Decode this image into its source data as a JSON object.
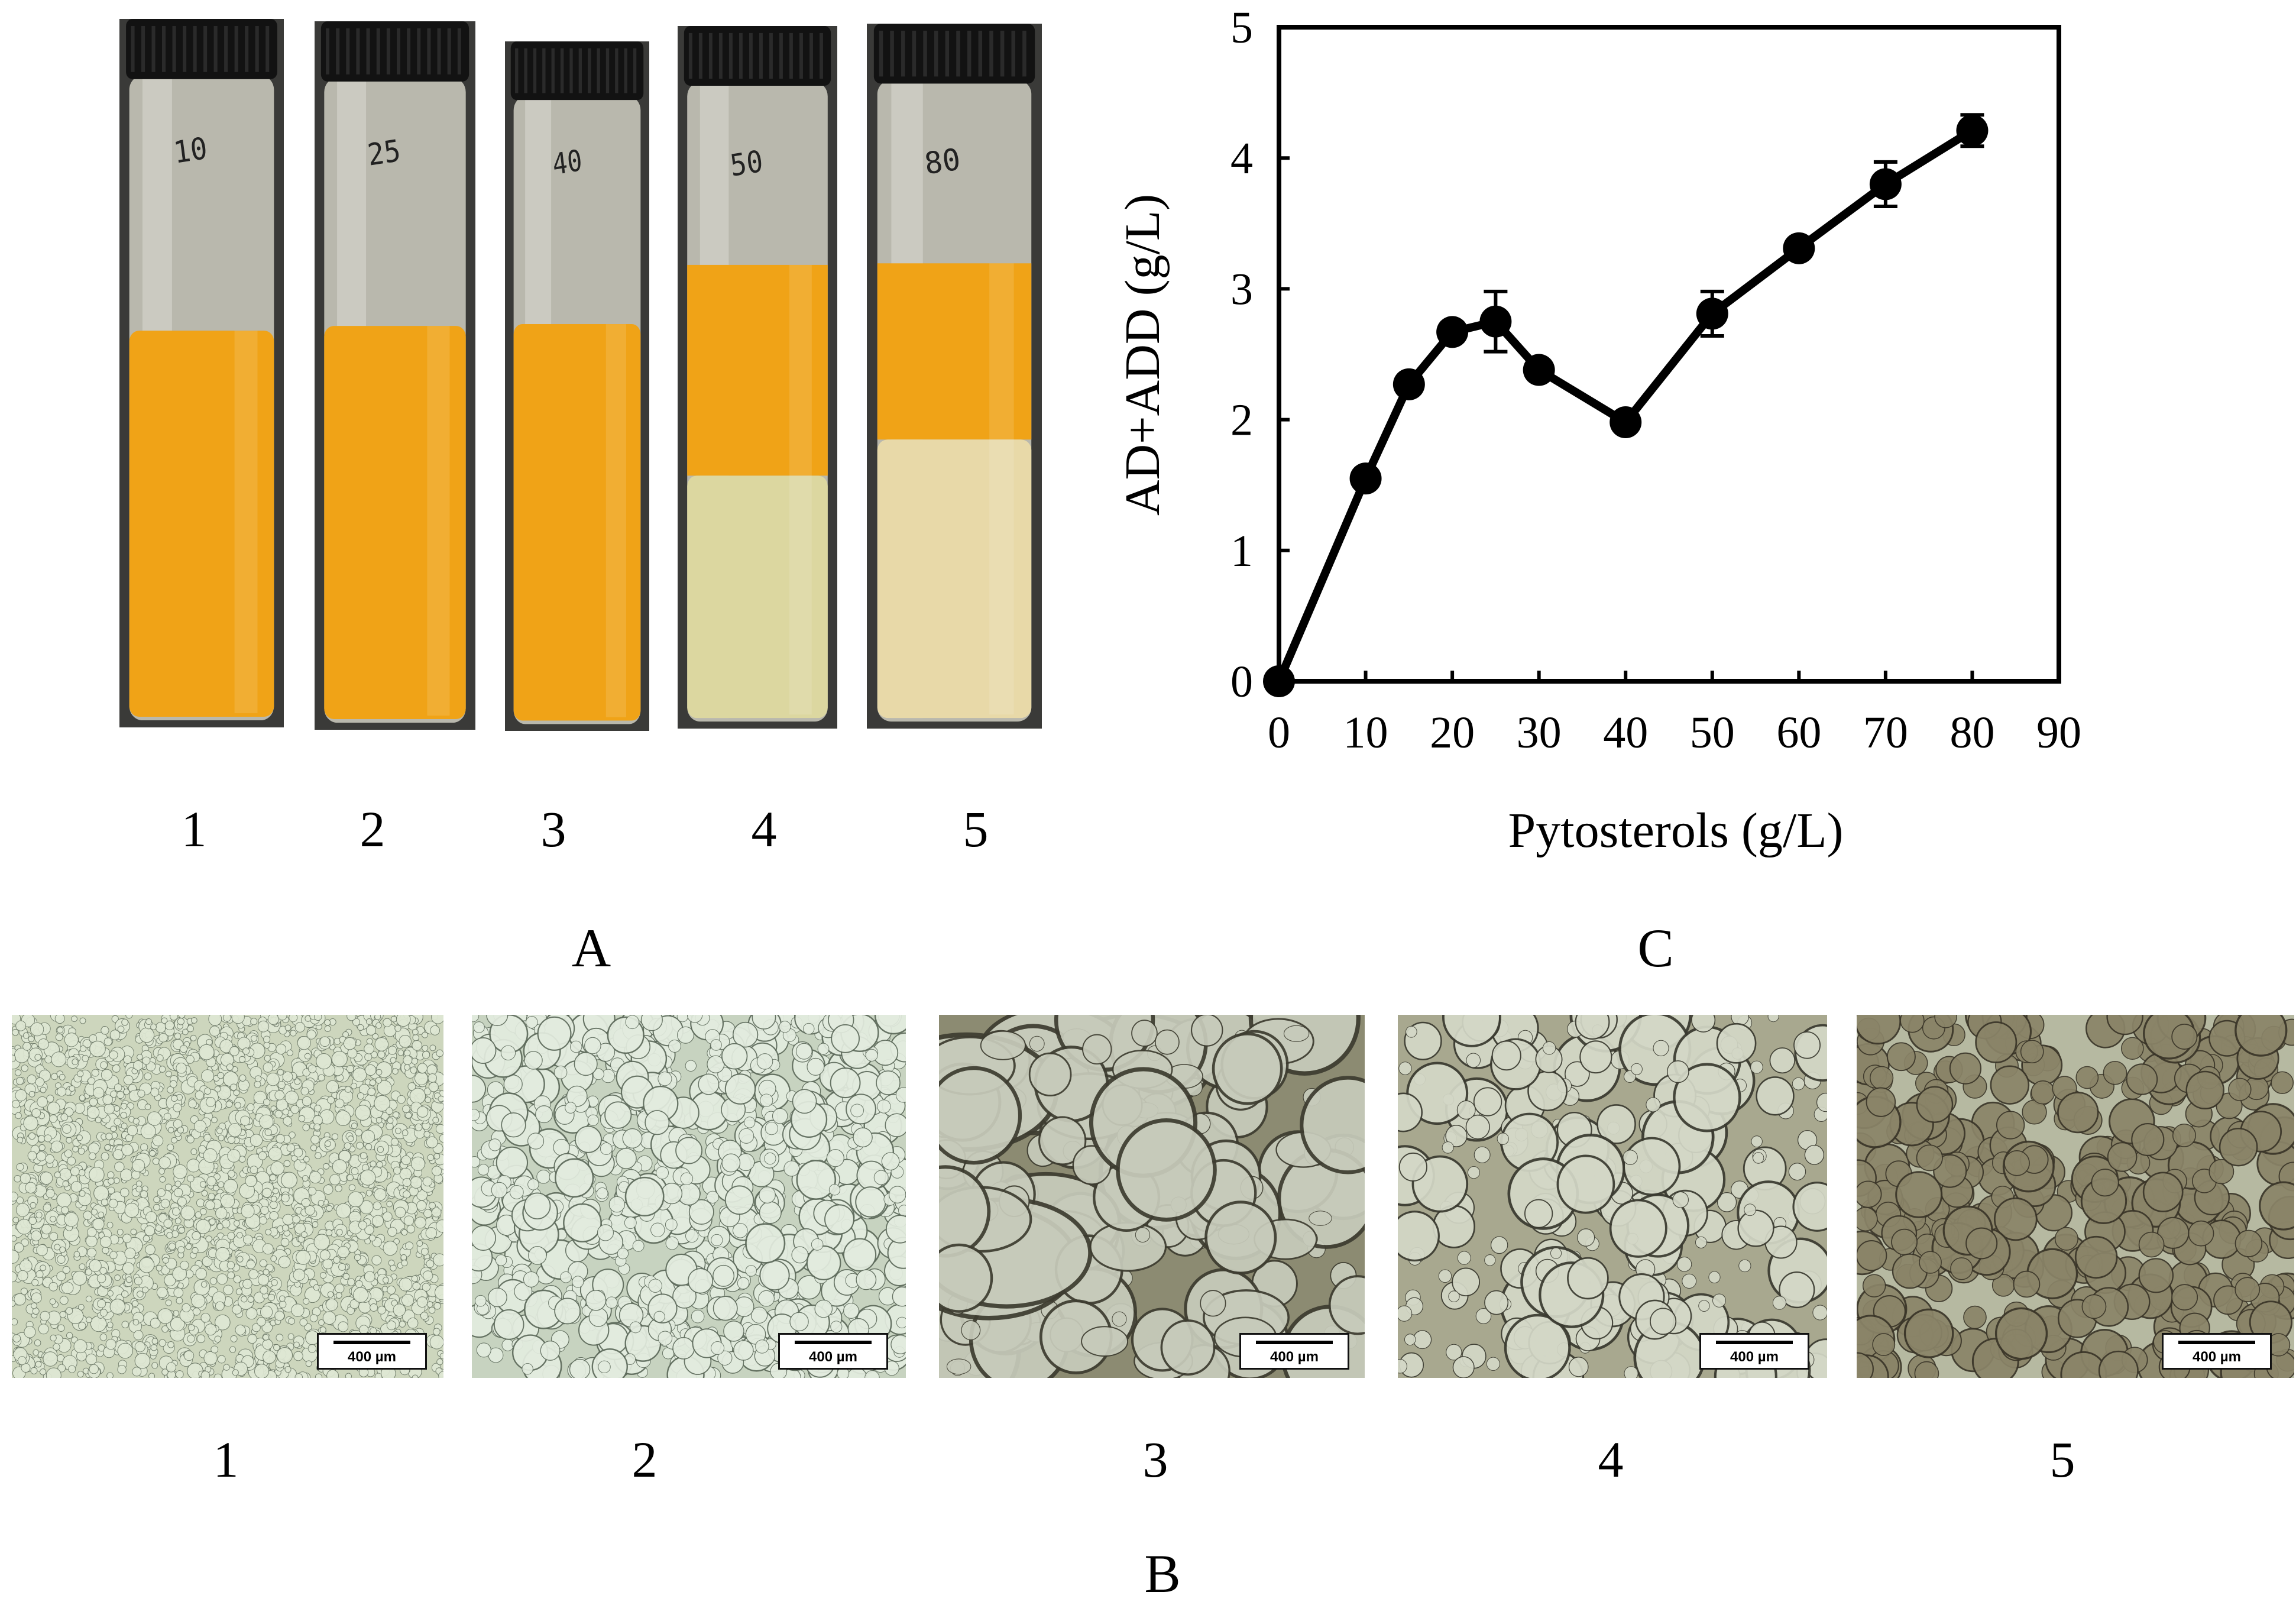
{
  "panels": {
    "A": {
      "letter": "A",
      "vials": [
        {
          "number": "1",
          "handwriting": "10",
          "culture_level": 0.0,
          "separated": false
        },
        {
          "number": "2",
          "handwriting": "25",
          "culture_level": 0.0,
          "separated": false
        },
        {
          "number": "3",
          "handwriting": "40",
          "culture_level": 0.0,
          "separated": false
        },
        {
          "number": "4",
          "handwriting": "50",
          "culture_level": 0.0,
          "separated": true
        },
        {
          "number": "5",
          "handwriting": "80",
          "culture_level": 0.0,
          "separated": true
        }
      ]
    },
    "B": {
      "letter": "B",
      "micrographs": [
        {
          "number": "1",
          "scale": "400 µm"
        },
        {
          "number": "2",
          "scale": "400 µm"
        },
        {
          "number": "3",
          "scale": "400 µm"
        },
        {
          "number": "4",
          "scale": "400 µm"
        },
        {
          "number": "5",
          "scale": "400 µm"
        }
      ]
    },
    "C": {
      "letter": "C"
    }
  },
  "colors": {
    "culture_orange": "#f0a317",
    "cream_layer": "#e8d9a8",
    "clear_layer": "#dcd7a0",
    "micro_bg_fine": "#c9d3b8",
    "micro_bg_brown": "#8d8c74"
  },
  "chart_data": {
    "type": "line",
    "title": "",
    "xlabel": "Pytosterols (g/L)",
    "ylabel": "AD+ADD (g/L)",
    "xlim": [
      0,
      90
    ],
    "ylim": [
      0,
      5
    ],
    "xticks": [
      "0",
      "10",
      "20",
      "30",
      "40",
      "50",
      "60",
      "70",
      "80",
      "90"
    ],
    "yticks": [
      "0",
      "1",
      "2",
      "3",
      "4",
      "5"
    ],
    "grid": false,
    "legend": "none",
    "series": [
      {
        "x": [
          0,
          10,
          15,
          20,
          25,
          30,
          40,
          50,
          60,
          70,
          80
        ],
        "y": [
          0,
          1.55,
          2.27,
          2.67,
          2.75,
          2.38,
          1.98,
          2.81,
          3.31,
          3.8,
          4.21
        ],
        "err": [
          0,
          0.05,
          0.06,
          0.07,
          0.23,
          0.06,
          0.06,
          0.17,
          0.06,
          0.17,
          0.12
        ]
      }
    ]
  }
}
